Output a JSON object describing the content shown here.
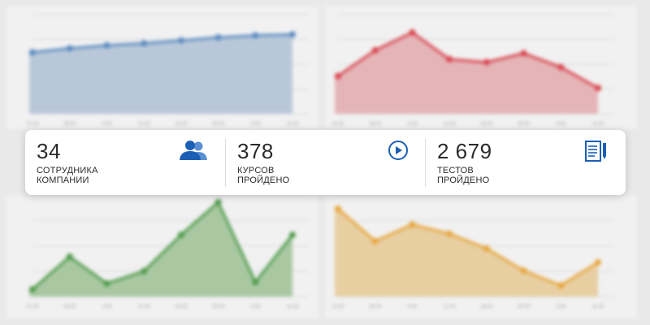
{
  "stats": [
    {
      "value": "34",
      "label_line1": "СОТРУДНИКА",
      "label_line2": "КОМПАНИИ",
      "icon": "users-icon"
    },
    {
      "value": "378",
      "label_line1": "КУРСОВ",
      "label_line2": "ПРОЙДЕНО",
      "icon": "play-circle-icon"
    },
    {
      "value": "2 679",
      "label_line1": "ТЕСТОВ",
      "label_line2": "ПРОЙДЕНО",
      "icon": "document-edit-icon"
    }
  ],
  "colors": {
    "icon_blue": "#1b5fb5",
    "chart_blue_line": "#5b8bc0",
    "chart_blue_fill": "#b8c8d9",
    "chart_red_line": "#d9454e",
    "chart_red_fill": "#e4b4b7",
    "chart_green_line": "#4e9a4a",
    "chart_green_fill": "#a9c8a2",
    "chart_orange_line": "#e8a53c",
    "chart_orange_fill": "#e7cfa2"
  },
  "chart_data": [
    {
      "type": "area",
      "position": "top-left",
      "x": [
        "21.03",
        "28.03",
        "4.03",
        "11.03",
        "18.03",
        "25.03",
        "4.03",
        "11.03"
      ],
      "values": [
        62,
        66,
        69,
        71,
        74,
        77,
        79,
        80
      ],
      "ylim": [
        0,
        100
      ],
      "title": "",
      "xlabel": "",
      "ylabel": ""
    },
    {
      "type": "area",
      "position": "top-right",
      "x": [
        "21.03",
        "28.03",
        "4.03",
        "11.03",
        "18.03",
        "25.03",
        "4.03",
        "11.03"
      ],
      "values": [
        38,
        64,
        82,
        55,
        52,
        61,
        47,
        26
      ],
      "ylim": [
        0,
        100
      ],
      "title": "",
      "xlabel": "",
      "ylabel": ""
    },
    {
      "type": "area",
      "position": "bottom-left",
      "x": [
        "21.03",
        "28.03",
        "4.03",
        "11.03",
        "18.03",
        "25.03",
        "4.03",
        "11.03"
      ],
      "values": [
        10,
        55,
        18,
        35,
        85,
        130,
        20,
        85
      ],
      "ylim": [
        0,
        140
      ],
      "title": "",
      "xlabel": "",
      "ylabel": ""
    },
    {
      "type": "area",
      "position": "bottom-right",
      "x": [
        "21.03",
        "28.03",
        "4.03",
        "11.03",
        "18.03",
        "25.03",
        "4.03",
        "11.03"
      ],
      "values": [
        95,
        60,
        78,
        68,
        52,
        28,
        12,
        37
      ],
      "ylim": [
        0,
        110
      ],
      "title": "",
      "xlabel": "",
      "ylabel": ""
    }
  ]
}
